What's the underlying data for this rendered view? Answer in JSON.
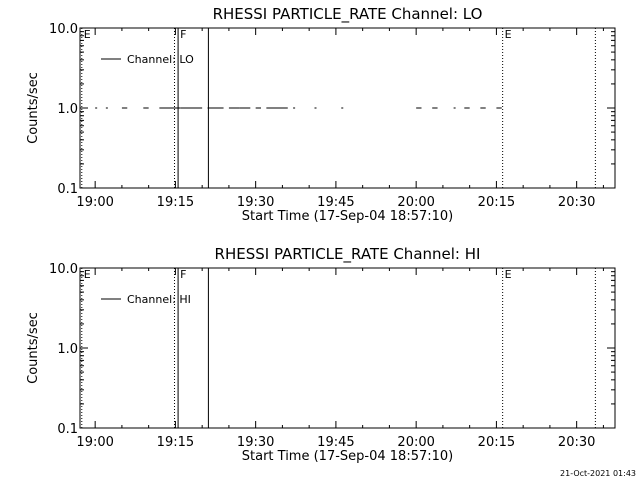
{
  "footer": {
    "timestamp": "21-Oct-2021 01:43"
  },
  "chart_data": [
    {
      "type": "line",
      "title": "RHESSI PARTICLE_RATE Channel: LO",
      "xlabel": "Start Time (17-Sep-04 18:57:10)",
      "ylabel": "Counts/sec",
      "y_scale": "log",
      "ylim": [
        0.1,
        10.0
      ],
      "xlim": [
        "18:57:10",
        "20:37:10"
      ],
      "x_ticks": [
        "19:00",
        "19:15",
        "19:30",
        "19:45",
        "20:00",
        "20:15",
        "20:30"
      ],
      "y_ticks": [
        "0.1",
        "1.0",
        "10.0"
      ],
      "legend": {
        "placement": "top-left",
        "entries": [
          "Channel: LO"
        ]
      },
      "series": [
        {
          "name": "Channel: LO",
          "segments": [
            {
              "x": [
                "19:00",
                "19:00"
              ],
              "y": 1.0
            },
            {
              "x": [
                "19:02",
                "19:02"
              ],
              "y": 1.0
            },
            {
              "x": [
                "19:05",
                "19:06"
              ],
              "y": 1.0
            },
            {
              "x": [
                "19:09",
                "19:10"
              ],
              "y": 1.0
            },
            {
              "x": [
                "19:12",
                "19:16"
              ],
              "y": 1.0
            },
            {
              "x": [
                "19:16",
                "19:20"
              ],
              "y": 1.0
            },
            {
              "x": [
                "19:21",
                "19:24"
              ],
              "y": 1.0
            },
            {
              "x": [
                "19:25",
                "19:27"
              ],
              "y": 1.0
            },
            {
              "x": [
                "19:27",
                "19:29"
              ],
              "y": 1.0
            },
            {
              "x": [
                "19:30",
                "19:31"
              ],
              "y": 1.0
            },
            {
              "x": [
                "19:32",
                "19:36"
              ],
              "y": 1.0
            },
            {
              "x": [
                "19:37",
                "19:37"
              ],
              "y": 1.0
            },
            {
              "x": [
                "19:41",
                "19:41"
              ],
              "y": 1.0
            },
            {
              "x": [
                "19:46",
                "19:46"
              ],
              "y": 1.0
            },
            {
              "x": [
                "20:00",
                "20:01"
              ],
              "y": 1.0
            },
            {
              "x": [
                "20:03",
                "20:04"
              ],
              "y": 1.0
            },
            {
              "x": [
                "20:07",
                "20:07"
              ],
              "y": 1.0
            },
            {
              "x": [
                "20:09",
                "20:10"
              ],
              "y": 1.0
            },
            {
              "x": [
                "20:12",
                "20:13"
              ],
              "y": 1.0
            },
            {
              "x": [
                "20:15",
                "20:16"
              ],
              "y": 1.0
            }
          ]
        }
      ],
      "markers": [
        {
          "time": "18:57:30",
          "label": "E",
          "style": "dotted"
        },
        {
          "time": "19:14:50",
          "label": "",
          "style": "dotted"
        },
        {
          "time": "19:15:30",
          "label": "F",
          "style": "solid"
        },
        {
          "time": "19:21:10",
          "label": "",
          "style": "solid"
        },
        {
          "time": "20:16:10",
          "label": "E",
          "style": "dotted"
        },
        {
          "time": "20:33:30",
          "label": "",
          "style": "dotted"
        }
      ],
      "grid": false
    },
    {
      "type": "line",
      "title": "RHESSI PARTICLE_RATE Channel: HI",
      "xlabel": "Start Time (17-Sep-04 18:57:10)",
      "ylabel": "Counts/sec",
      "y_scale": "log",
      "ylim": [
        0.1,
        10.0
      ],
      "xlim": [
        "18:57:10",
        "20:37:10"
      ],
      "x_ticks": [
        "19:00",
        "19:15",
        "19:30",
        "19:45",
        "20:00",
        "20:15",
        "20:30"
      ],
      "y_ticks": [
        "0.1",
        "1.0",
        "10.0"
      ],
      "legend": {
        "placement": "top-left",
        "entries": [
          "Channel: HI"
        ]
      },
      "series": [
        {
          "name": "Channel: HI",
          "segments": []
        }
      ],
      "markers": [
        {
          "time": "18:57:30",
          "label": "E",
          "style": "dotted"
        },
        {
          "time": "19:14:50",
          "label": "",
          "style": "dotted"
        },
        {
          "time": "19:15:30",
          "label": "F",
          "style": "solid"
        },
        {
          "time": "19:21:10",
          "label": "",
          "style": "solid"
        },
        {
          "time": "20:16:10",
          "label": "E",
          "style": "dotted"
        },
        {
          "time": "20:33:30",
          "label": "",
          "style": "dotted"
        }
      ],
      "grid": false
    }
  ]
}
